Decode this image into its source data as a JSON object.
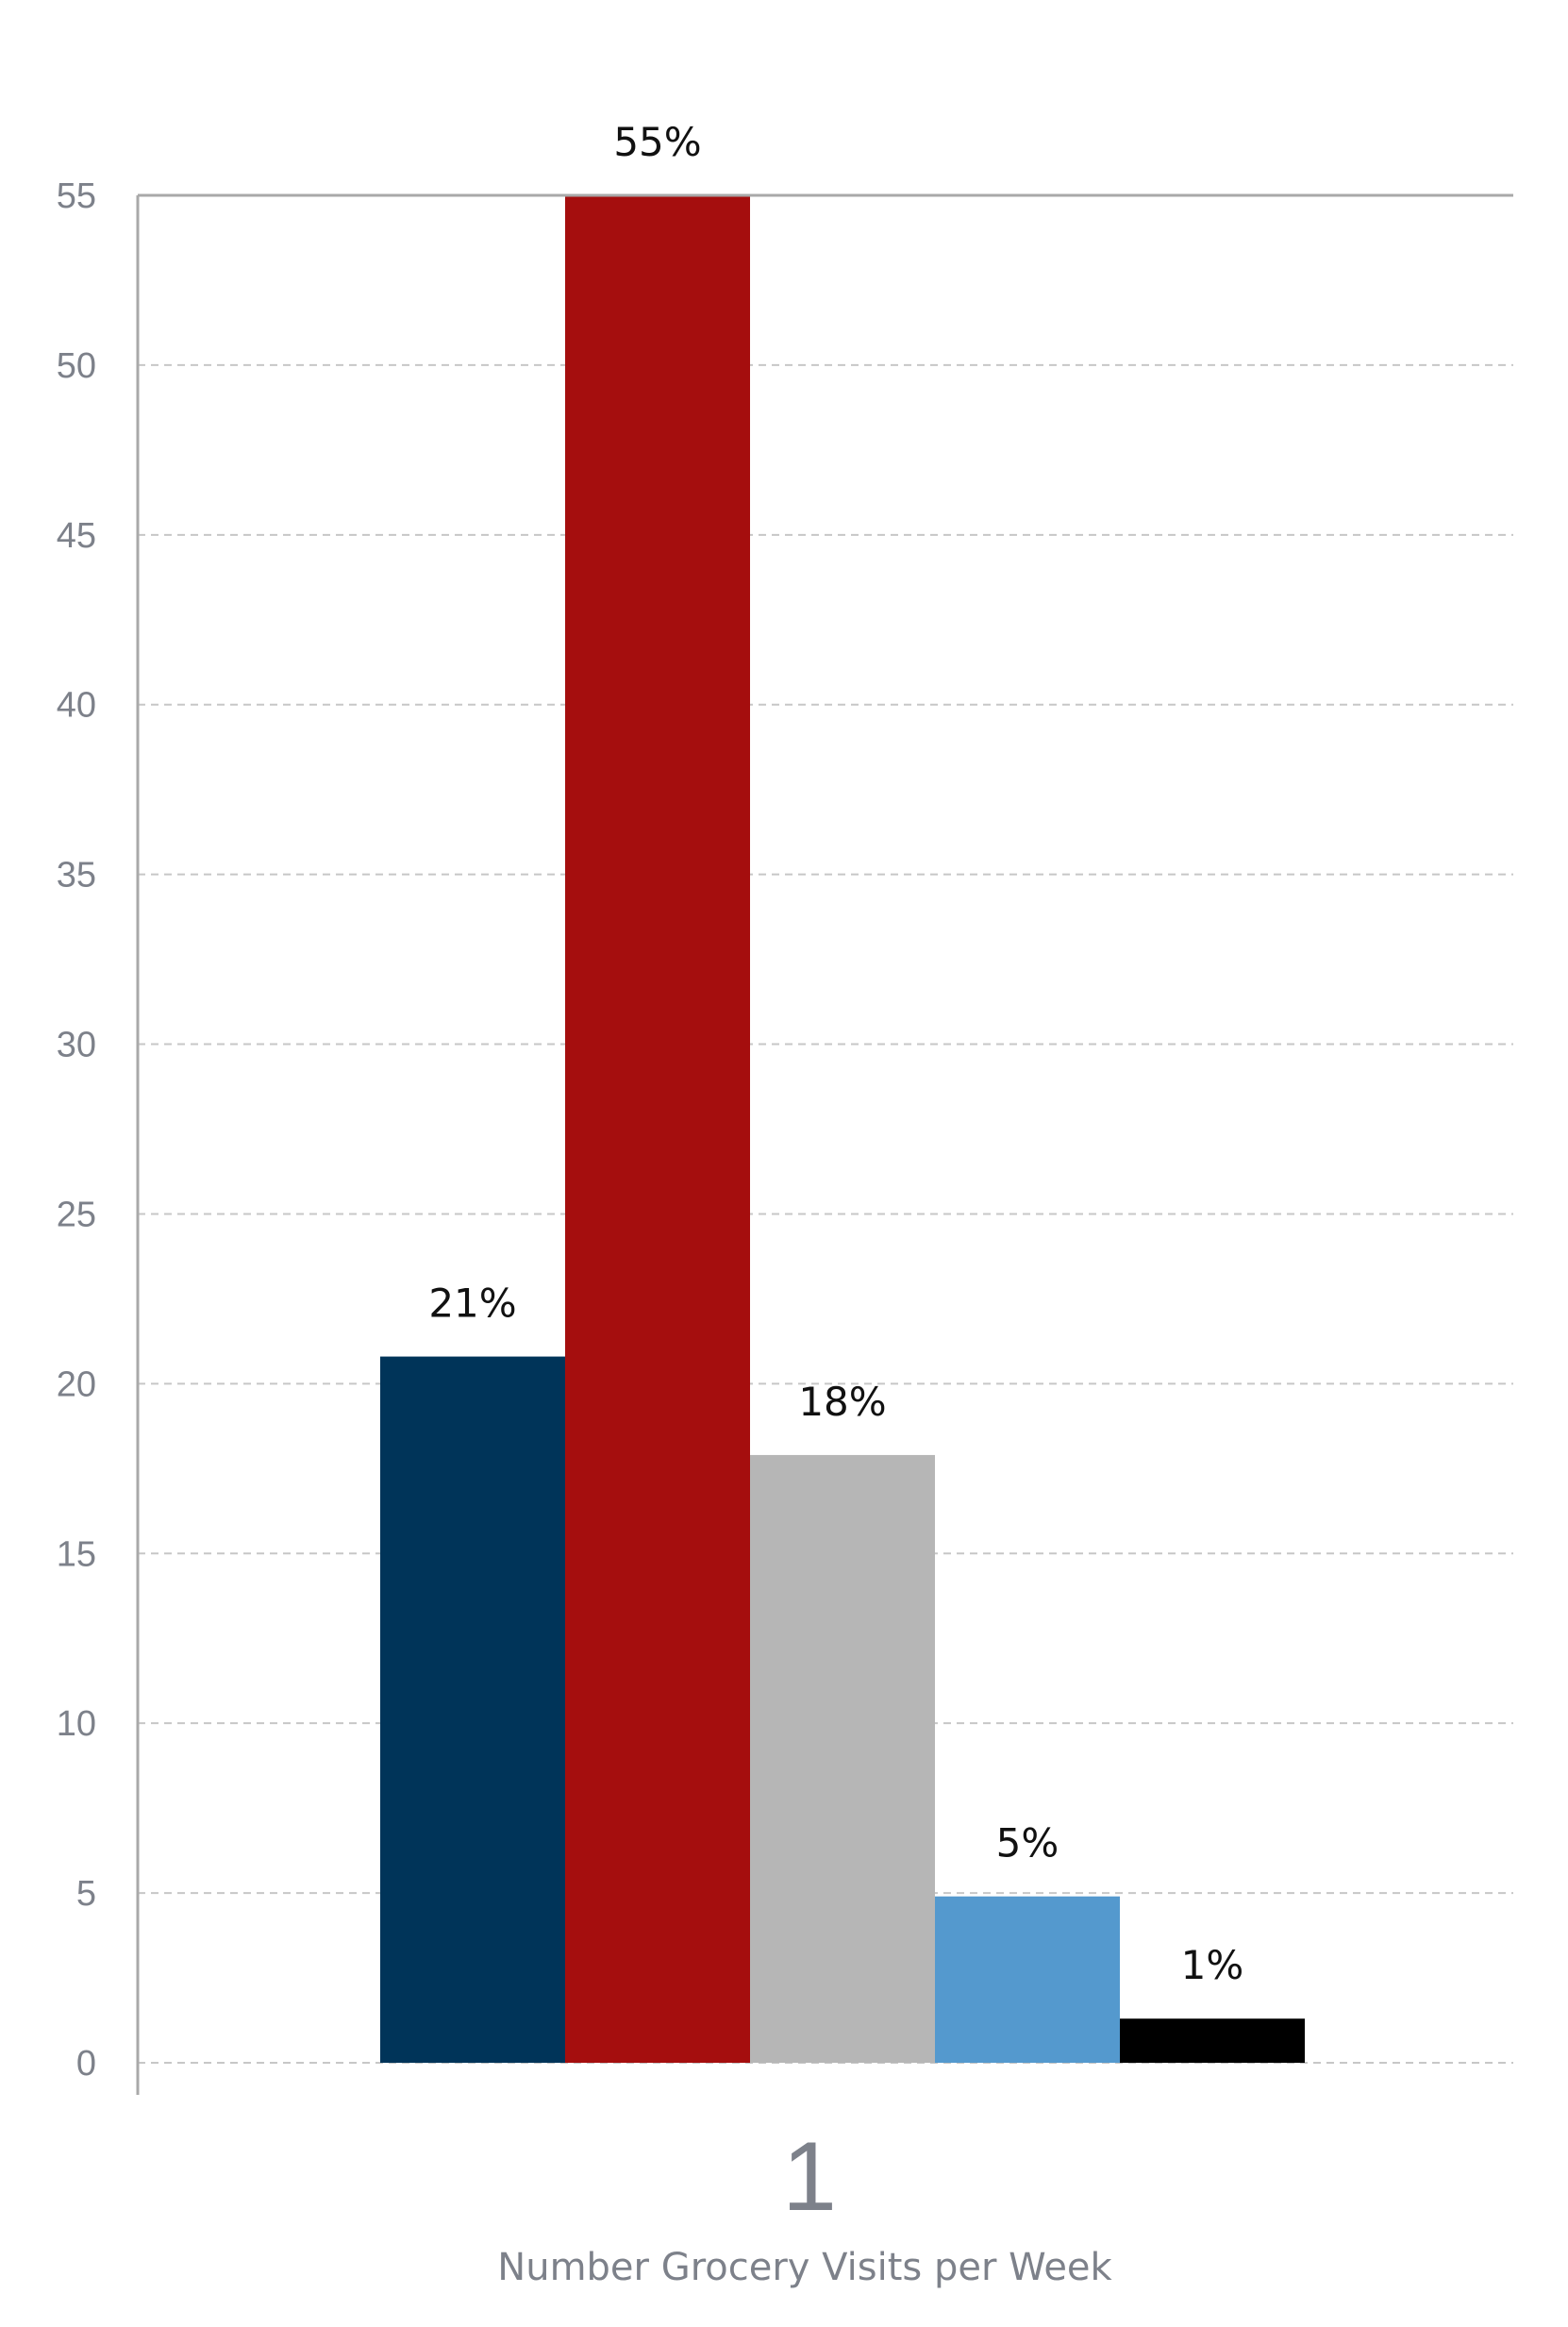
{
  "chart_data": {
    "type": "bar",
    "categories": [
      "1"
    ],
    "series": [
      {
        "values": [
          20.8
        ],
        "label": "21%",
        "color": "#003459"
      },
      {
        "values": [
          55.0
        ],
        "label": "55%",
        "color": "#a50e0e"
      },
      {
        "values": [
          17.9
        ],
        "label": "18%",
        "color": "#b6b6b6"
      },
      {
        "values": [
          4.9
        ],
        "label": "5%",
        "color": "#5499ce"
      },
      {
        "values": [
          1.3
        ],
        "label": "1%",
        "color": "#000000"
      }
    ],
    "ylim": [
      0,
      55
    ],
    "yticks": [
      "0",
      "5",
      "10",
      "15",
      "20",
      "25",
      "30",
      "35",
      "40",
      "45",
      "50",
      "55"
    ],
    "xlabel": "Number Grocery Visits per Week",
    "ylabel": "",
    "grid": true,
    "legend": "none"
  }
}
